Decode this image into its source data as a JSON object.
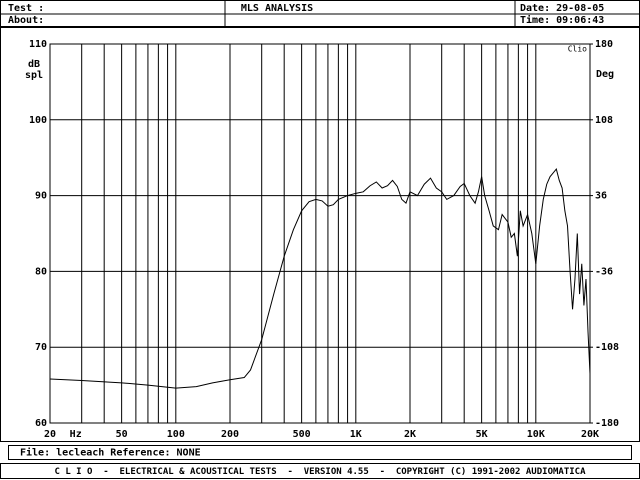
{
  "header": {
    "test_label": "Test :",
    "about_label": "About:",
    "title": "MLS ANALYSIS",
    "date": "Date: 29-08-05",
    "time": "Time: 09:06:43"
  },
  "chart_data": {
    "type": "line",
    "xscale": "log",
    "color": "#000000",
    "grid": true,
    "ylabel": [
      "dB",
      "spl"
    ],
    "y2label": "Deg",
    "xlabel": "Hz",
    "annotation": "Clio",
    "xlim": [
      20,
      20000
    ],
    "ylim": [
      60,
      110
    ],
    "y2lim": [
      -180,
      180
    ],
    "xticks": [
      20,
      50,
      100,
      200,
      500,
      {
        "value": 1000,
        "label": "1K"
      },
      {
        "value": 2000,
        "label": "2K"
      },
      {
        "value": 5000,
        "label": "5K"
      },
      {
        "value": 10000,
        "label": "10K"
      },
      {
        "value": 20000,
        "label": "20K"
      }
    ],
    "xminor": [
      30,
      40,
      60,
      70,
      80,
      90,
      300,
      400,
      600,
      700,
      800,
      900,
      3000,
      4000,
      6000,
      7000,
      8000,
      9000
    ],
    "yticks": [
      60,
      70,
      80,
      90,
      100,
      110
    ],
    "y2ticks": [
      -180,
      -108,
      -36,
      36,
      108,
      180
    ],
    "x": [
      20,
      30,
      50,
      70,
      100,
      130,
      160,
      200,
      240,
      260,
      300,
      350,
      400,
      450,
      500,
      550,
      600,
      650,
      700,
      750,
      800,
      900,
      1000,
      1100,
      1200,
      1300,
      1400,
      1500,
      1600,
      1700,
      1800,
      1900,
      2000,
      2200,
      2400,
      2600,
      2800,
      3000,
      3200,
      3500,
      3800,
      4000,
      4300,
      4600,
      4800,
      5000,
      5200,
      5500,
      5800,
      6200,
      6500,
      7000,
      7300,
      7600,
      7900,
      8200,
      8500,
      9000,
      9500,
      10000,
      10500,
      11000,
      11500,
      12000,
      12500,
      13000,
      13500,
      14000,
      14500,
      15000,
      15500,
      16000,
      16500,
      17000,
      17500,
      18000,
      18500,
      19000,
      19500,
      20000
    ],
    "values": [
      65.8,
      65.6,
      65.3,
      65.0,
      64.6,
      64.8,
      65.3,
      65.7,
      66.0,
      67,
      71,
      77,
      82,
      85.5,
      88,
      89.2,
      89.5,
      89.3,
      88.6,
      88.8,
      89.5,
      90.0,
      90.3,
      90.5,
      91.3,
      91.8,
      91.0,
      91.3,
      92.0,
      91.2,
      89.5,
      89.0,
      90.5,
      90.0,
      91.5,
      92.3,
      91.0,
      90.5,
      89.5,
      90.0,
      91.2,
      91.6,
      90.0,
      89.0,
      90.5,
      92.5,
      90.0,
      88.0,
      86.0,
      85.5,
      87.5,
      86.5,
      84.5,
      85.0,
      82.0,
      88.0,
      86.0,
      87.5,
      85.0,
      81.0,
      86.0,
      89.5,
      91.5,
      92.5,
      93.0,
      93.5,
      92.0,
      91.0,
      88.0,
      86.0,
      80.0,
      75.0,
      79.0,
      85.0,
      77.0,
      81.0,
      75.5,
      79.0,
      72.0,
      66.5
    ]
  },
  "footer": {
    "file": "File: lecleach Reference: NONE",
    "credits": "C L I O  -  ELECTRICAL & ACOUSTICAL TESTS  -  VERSION 4.55  -  COPYRIGHT (C) 1991-2002 AUDIOMATICA"
  }
}
